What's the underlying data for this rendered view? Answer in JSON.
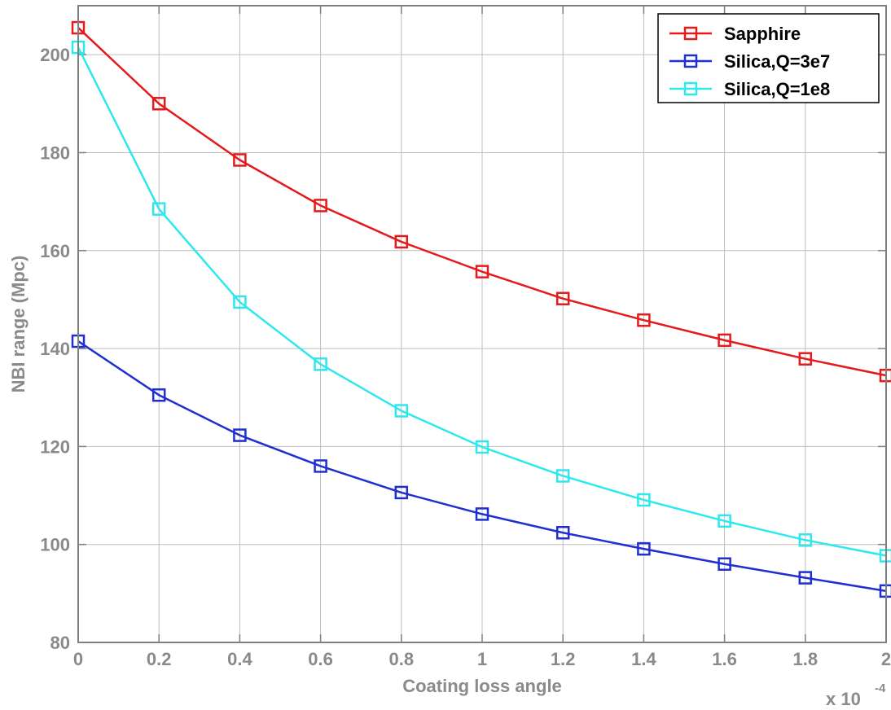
{
  "chart_data": {
    "type": "line",
    "title": "",
    "xlabel": "Coating loss angle",
    "ylabel": "NBI range (Mpc)",
    "x_multiplier_label": "x 10",
    "x_multiplier_exponent": "-4",
    "x": [
      0,
      0.2,
      0.4,
      0.6,
      0.8,
      1,
      1.2,
      1.4,
      1.6,
      1.8,
      2
    ],
    "xlim": [
      0,
      2
    ],
    "ylim": [
      80,
      210
    ],
    "xticks": [
      "0",
      "0.2",
      "0.4",
      "0.6",
      "0.8",
      "1",
      "1.2",
      "1.4",
      "1.6",
      "1.8",
      "2"
    ],
    "yticks": [
      "80",
      "100",
      "120",
      "140",
      "160",
      "180",
      "200"
    ],
    "grid": true,
    "legend_position": "top-right",
    "series": [
      {
        "name": "Sapphire",
        "color": "#e41a1c",
        "marker": "square",
        "values": [
          205.5,
          190.0,
          178.5,
          169.2,
          161.8,
          155.7,
          150.2,
          145.8,
          141.7,
          137.9,
          134.5
        ]
      },
      {
        "name": "Silica,Q=3e7",
        "color": "#1f2fd0",
        "marker": "square",
        "values": [
          141.5,
          130.5,
          122.3,
          116.0,
          110.6,
          106.2,
          102.4,
          99.1,
          96.0,
          93.2,
          90.5
        ]
      },
      {
        "name": "Silica,Q=1e8",
        "color": "#2ee8ee",
        "marker": "square",
        "values": [
          201.5,
          168.5,
          149.5,
          136.8,
          127.3,
          119.9,
          114.0,
          109.1,
          104.8,
          100.9,
          97.7
        ]
      }
    ]
  }
}
